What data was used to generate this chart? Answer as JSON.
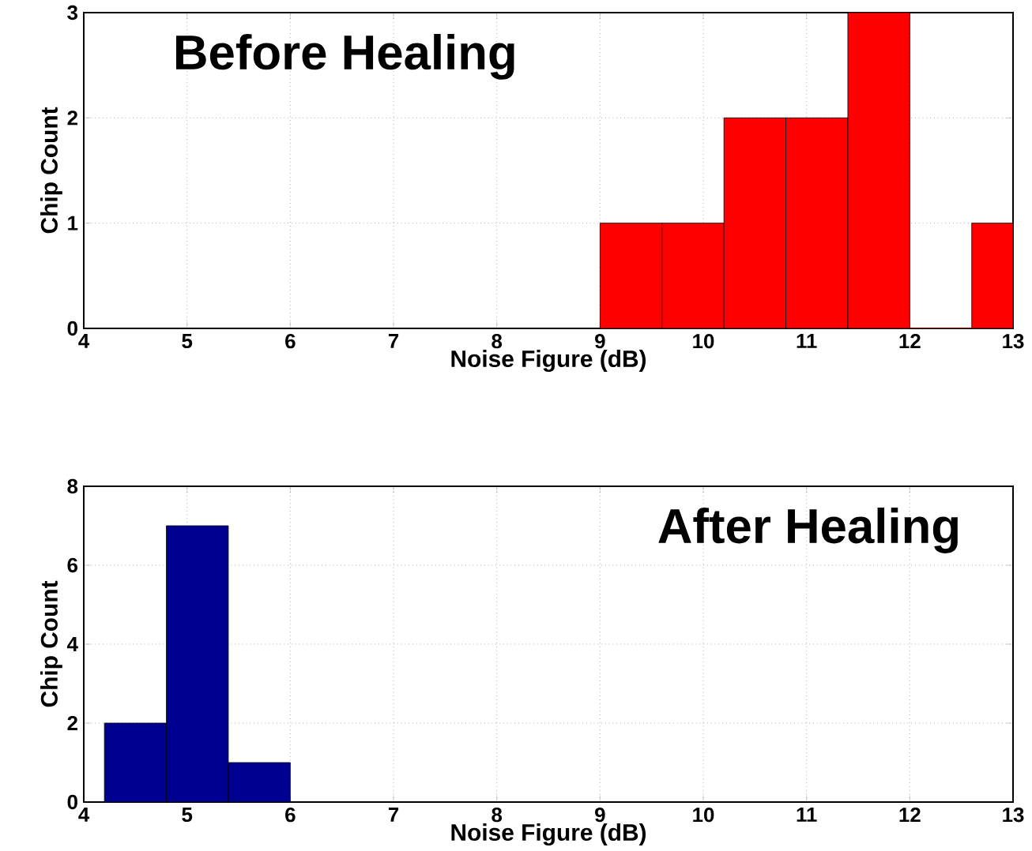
{
  "chart_data": [
    {
      "type": "histogram",
      "annotations": [
        "Before Healing"
      ],
      "xlabel": "Noise Figure (dB)",
      "ylabel": "Chip Count",
      "bins": [
        9.0,
        9.6,
        10.2,
        10.8,
        11.4,
        12.0,
        12.6,
        13.0
      ],
      "values": [
        1,
        1,
        2,
        2,
        3,
        0,
        1
      ],
      "color": "#ff0000",
      "xlim": [
        4,
        13
      ],
      "xticks": [
        4,
        5,
        6,
        7,
        8,
        9,
        10,
        11,
        12,
        13
      ],
      "ylim": [
        0,
        3
      ],
      "yticks": [
        0,
        1,
        2,
        3
      ],
      "grid": true
    },
    {
      "type": "histogram",
      "annotations": [
        "After Healing"
      ],
      "xlabel": "Noise Figure (dB)",
      "ylabel": "Chip Count",
      "bins": [
        4.2,
        4.8,
        5.4,
        6.0
      ],
      "values": [
        2,
        7,
        1
      ],
      "color": "#000090",
      "xlim": [
        4,
        13
      ],
      "xticks": [
        4,
        5,
        6,
        7,
        8,
        9,
        10,
        11,
        12,
        13
      ],
      "ylim": [
        0,
        8
      ],
      "yticks": [
        0,
        2,
        4,
        6,
        8
      ],
      "grid": true
    }
  ]
}
